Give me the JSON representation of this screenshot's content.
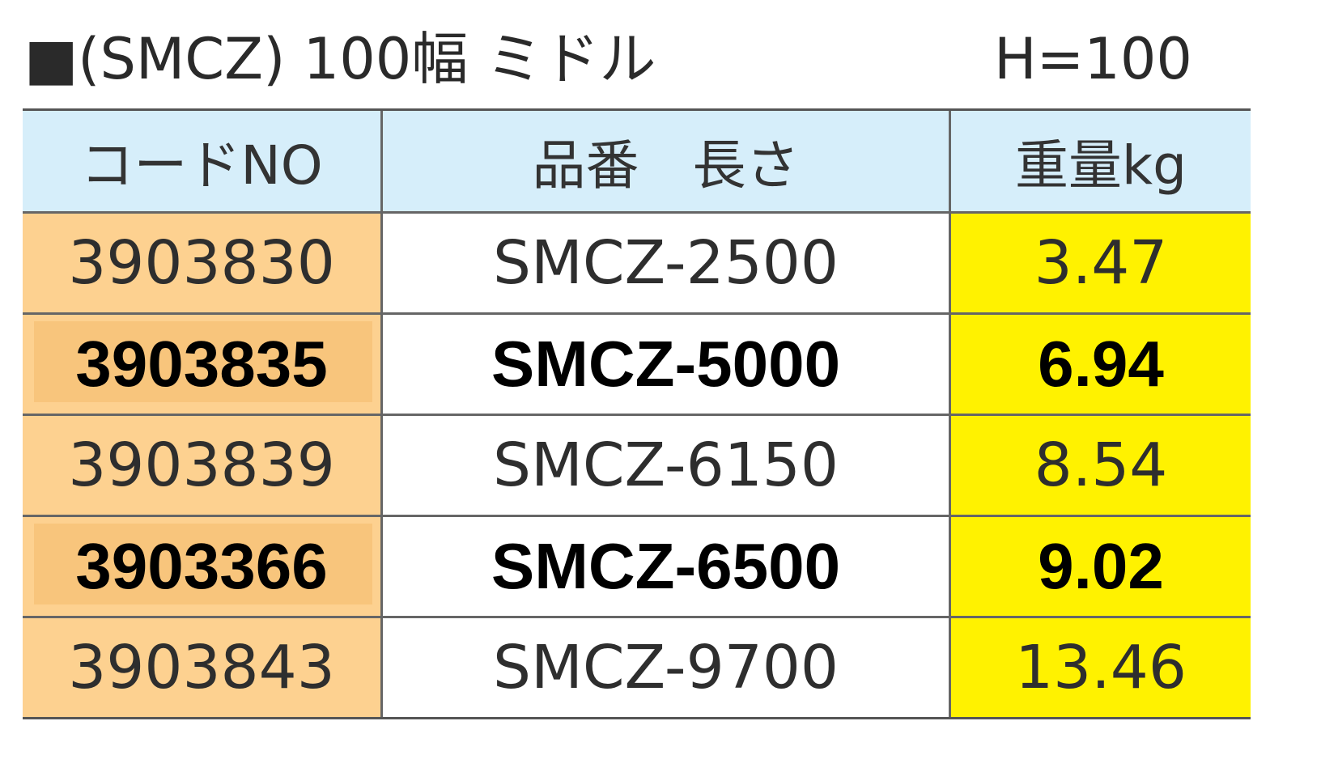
{
  "header": {
    "title": "■(SMCZ) 100幅 ミドル",
    "height": "H=100"
  },
  "table": {
    "columns": [
      "コードNO",
      "品番　長さ",
      "重量kg"
    ],
    "rows": [
      [
        "3903830",
        "SMCZ-2500",
        "3.47"
      ],
      [
        "3903835",
        "SMCZ-5000",
        "6.94"
      ],
      [
        "3903839",
        "SMCZ-6150",
        "8.54"
      ],
      [
        "3903366",
        "SMCZ-6500",
        "9.02"
      ],
      [
        "3903843",
        "SMCZ-9700",
        "13.46"
      ]
    ],
    "highlighted_rows": [
      1,
      3
    ]
  }
}
